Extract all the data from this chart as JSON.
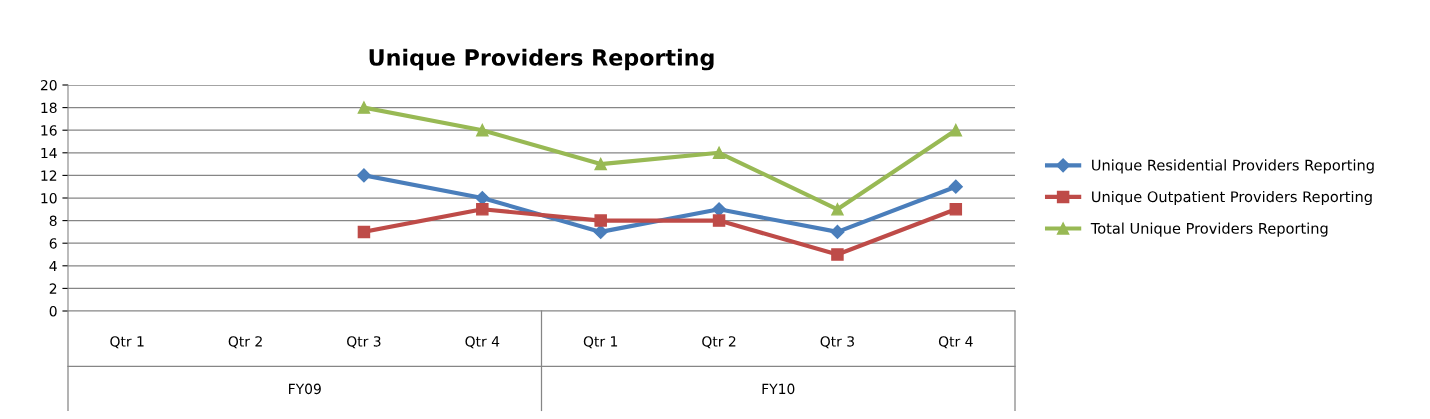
{
  "chart_data": {
    "type": "line",
    "title": "Unique Providers Reporting",
    "categories": [
      "Qtr 1",
      "Qtr 2",
      "Qtr 3",
      "Qtr 4",
      "Qtr 1",
      "Qtr 2",
      "Qtr 3",
      "Qtr 4"
    ],
    "annotations": [
      "FY09",
      "FY10"
    ],
    "series": [
      {
        "name": "Unique Residential Providers Reporting",
        "color": "#4a7ebb",
        "marker": "diamond",
        "values": [
          null,
          null,
          12,
          10,
          7,
          9,
          7,
          11
        ]
      },
      {
        "name": "Unique Outpatient Providers Reporting",
        "color": "#be4b48",
        "marker": "square",
        "values": [
          null,
          null,
          7,
          9,
          8,
          8,
          5,
          9
        ]
      },
      {
        "name": "Total Unique Providers Reporting",
        "color": "#98b954",
        "marker": "triangle",
        "values": [
          null,
          null,
          18,
          16,
          13,
          14,
          9,
          16
        ]
      }
    ],
    "ylim": [
      0,
      20
    ],
    "yticks": [
      0,
      2,
      4,
      6,
      8,
      10,
      12,
      14,
      16,
      18,
      20
    ],
    "grid": "y",
    "legend": "right",
    "line_style": "solid"
  }
}
